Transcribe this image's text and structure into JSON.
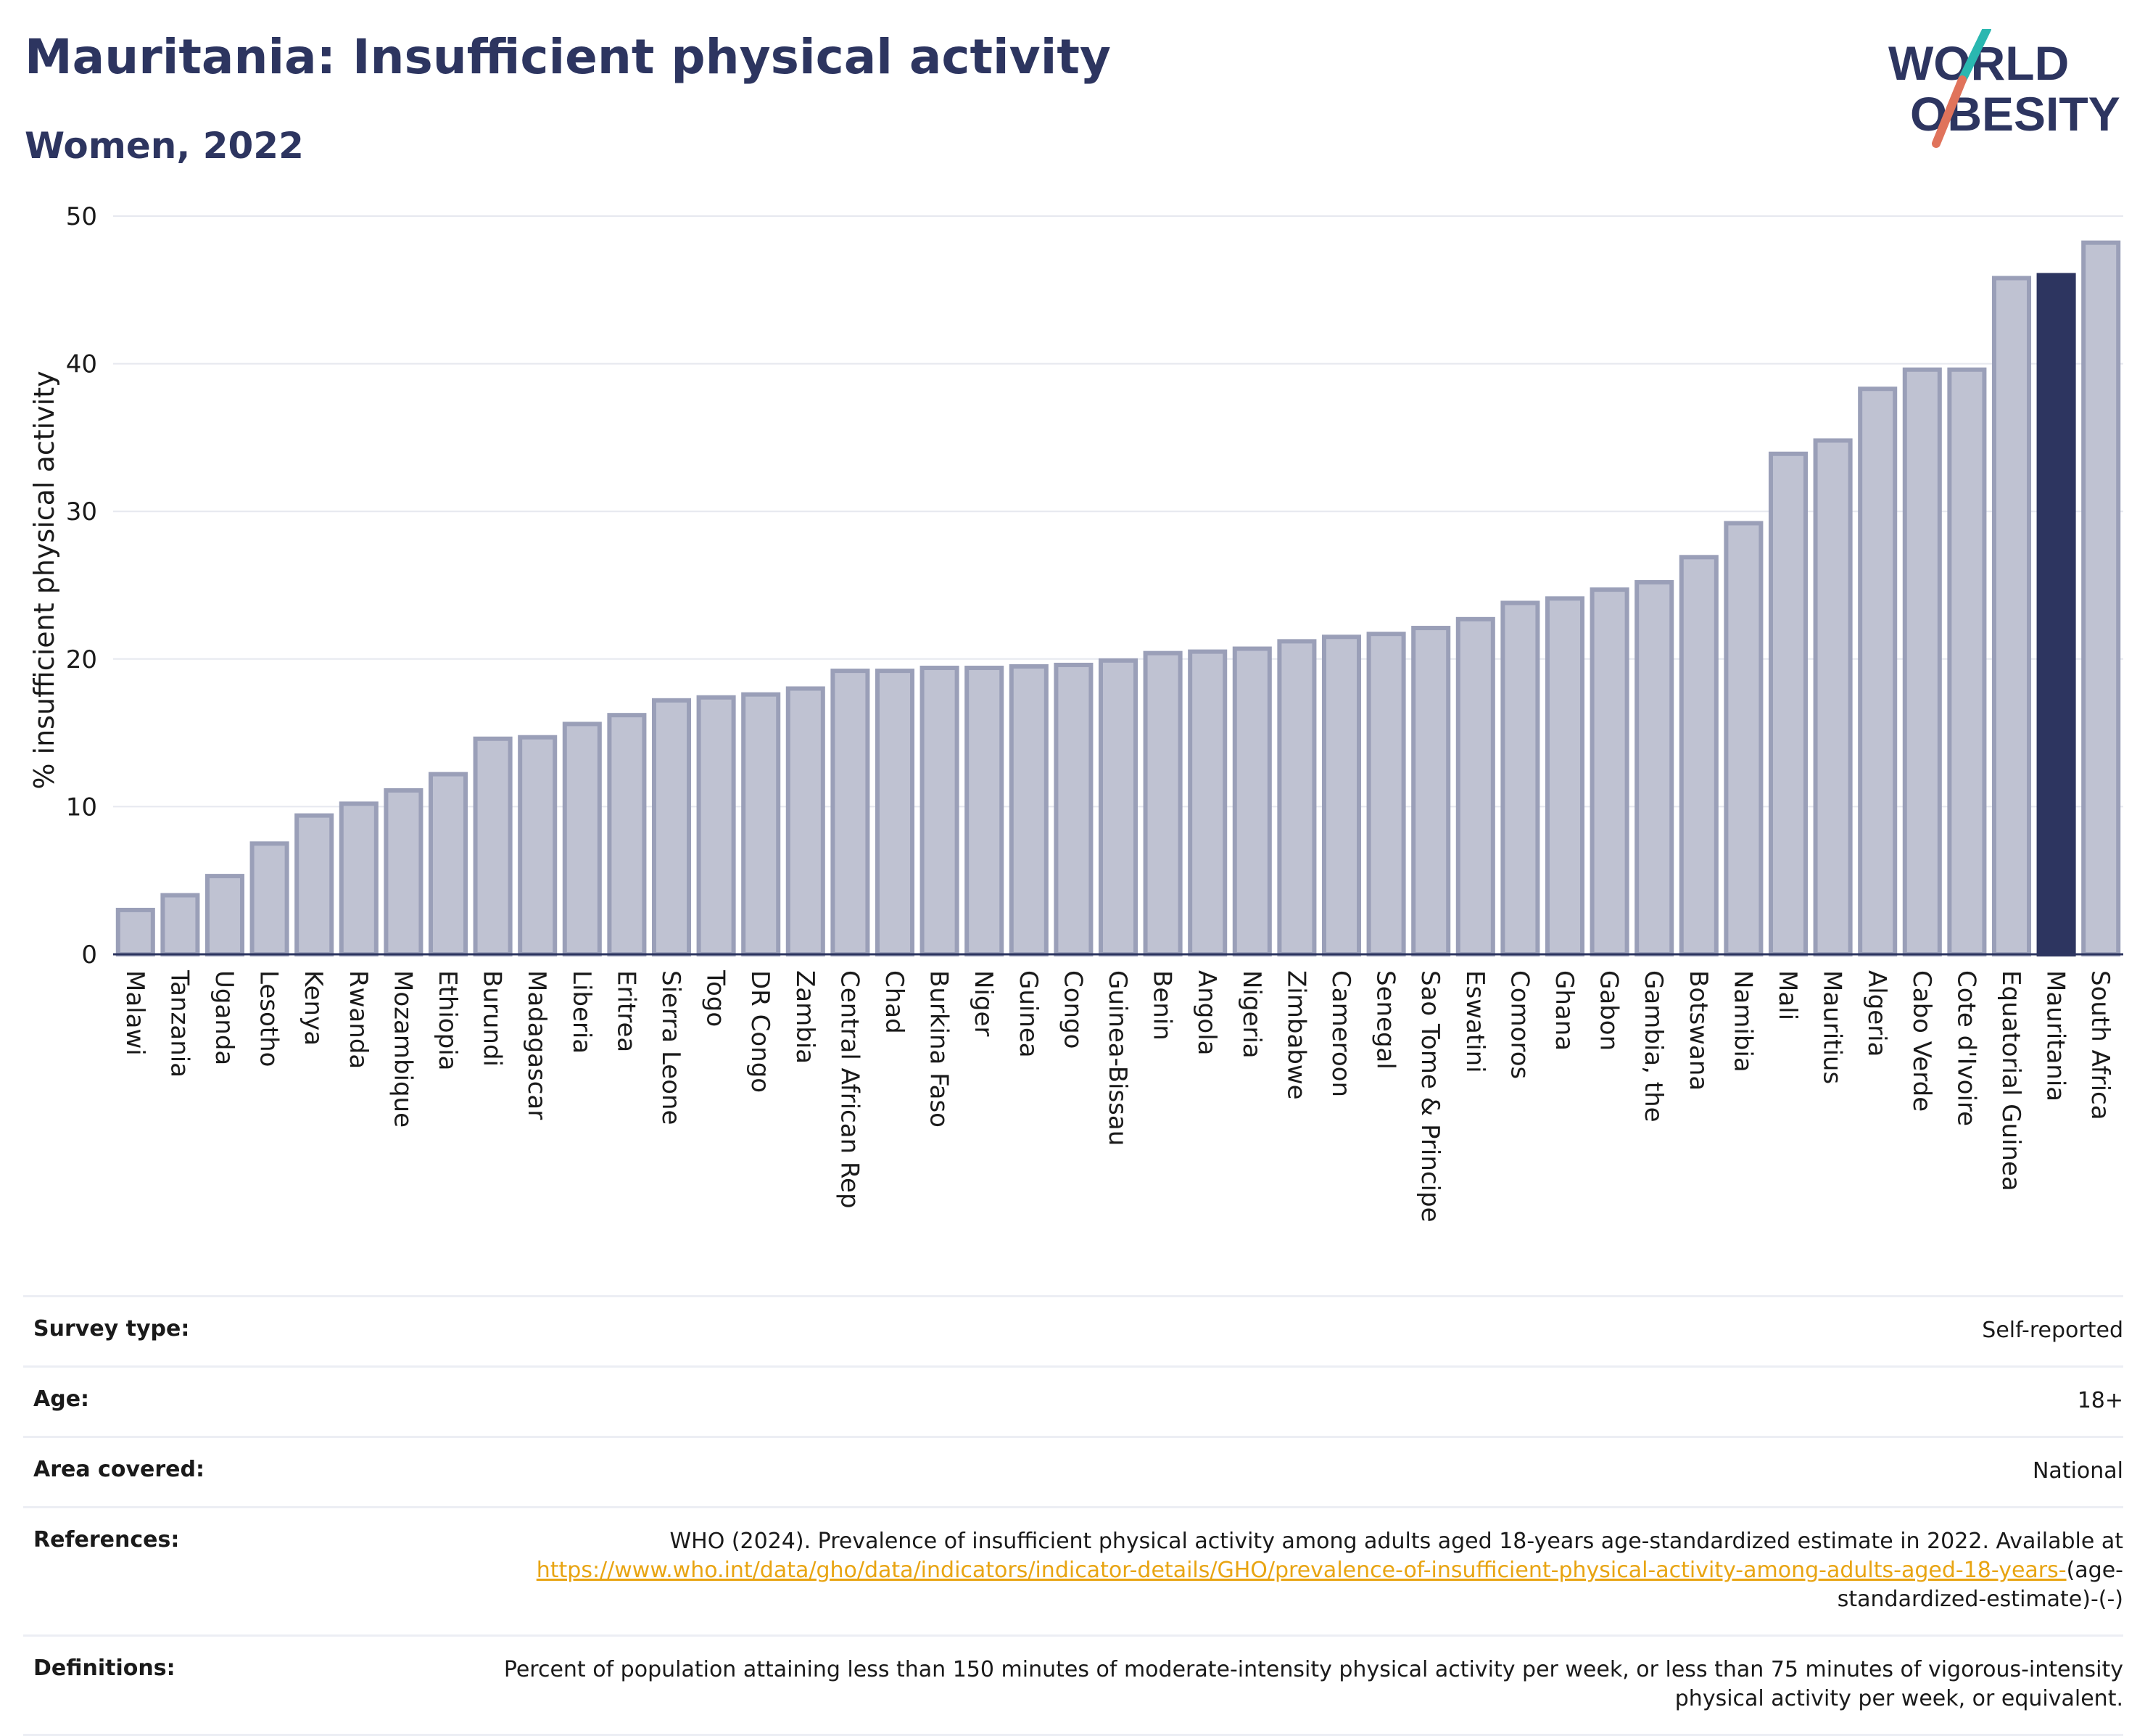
{
  "header": {
    "title": "Mauritania: Insufficient physical activity",
    "subtitle": "Women, 2022"
  },
  "logo": {
    "line1": "WORLD",
    "line2": "OBESITY",
    "colors": {
      "text": "#2d3560",
      "slash_top": "#2ab7b0",
      "slash_bottom": "#e0735b"
    }
  },
  "chart_data": {
    "type": "bar",
    "ylabel": "% insufficient physical activity",
    "ylim": [
      0,
      50
    ],
    "yticks": [
      0,
      10,
      20,
      30,
      40,
      50
    ],
    "grid": true,
    "highlight": "Mauritania",
    "colors": {
      "bar": "#bfc2d2",
      "bar_border": "#9a9fb8",
      "highlight": "#2d3560",
      "grid": "#e6e8ef",
      "axis": "#2d3560"
    },
    "categories": [
      "Malawi",
      "Tanzania",
      "Uganda",
      "Lesotho",
      "Kenya",
      "Rwanda",
      "Mozambique",
      "Ethiopia",
      "Burundi",
      "Madagascar",
      "Liberia",
      "Eritrea",
      "Sierra Leone",
      "Togo",
      "DR Congo",
      "Zambia",
      "Central African Rep",
      "Chad",
      "Burkina Faso",
      "Niger",
      "Guinea",
      "Congo",
      "Guinea-Bissau",
      "Benin",
      "Angola",
      "Nigeria",
      "Zimbabwe",
      "Cameroon",
      "Senegal",
      "Sao Tome & Principe",
      "Eswatini",
      "Comoros",
      "Ghana",
      "Gabon",
      "Gambia, the",
      "Botswana",
      "Namibia",
      "Mali",
      "Mauritius",
      "Algeria",
      "Cabo Verde",
      "Cote d'Ivoire",
      "Equatorial Guinea",
      "Mauritania",
      "South Africa"
    ],
    "values": [
      3.0,
      4.0,
      5.3,
      7.5,
      9.4,
      10.2,
      11.1,
      12.2,
      14.6,
      14.7,
      15.6,
      16.2,
      17.2,
      17.4,
      17.6,
      18.0,
      19.2,
      19.2,
      19.4,
      19.4,
      19.5,
      19.6,
      19.9,
      20.4,
      20.5,
      20.7,
      21.2,
      21.5,
      21.7,
      22.1,
      22.7,
      23.8,
      24.1,
      24.7,
      25.2,
      26.9,
      29.2,
      33.9,
      34.8,
      38.3,
      39.6,
      39.6,
      45.8,
      46.0,
      48.2
    ]
  },
  "meta": {
    "survey_type": {
      "label": "Survey type:",
      "value": "Self-reported"
    },
    "age": {
      "label": "Age:",
      "value": "18+"
    },
    "area": {
      "label": "Area covered:",
      "value": "National"
    },
    "references": {
      "label": "References:",
      "text": "WHO (2024). Prevalence of insufficient physical activity among adults aged 18-years age-standardized estimate in 2022. Available at",
      "link": "https://www.who.int/data/gho/data/indicators/indicator-details/GHO/prevalence-of-insufficient-physical-activity-among-adults-aged-18-years-",
      "suffix": "(age-standardized-estimate)-(-)"
    },
    "definitions": {
      "label": "Definitions:",
      "value": "Percent of population attaining less than 150 minutes of moderate-intensity physical activity per week, or less than 75 minutes of vigorous-intensity physical activity per week, or equivalent."
    }
  }
}
